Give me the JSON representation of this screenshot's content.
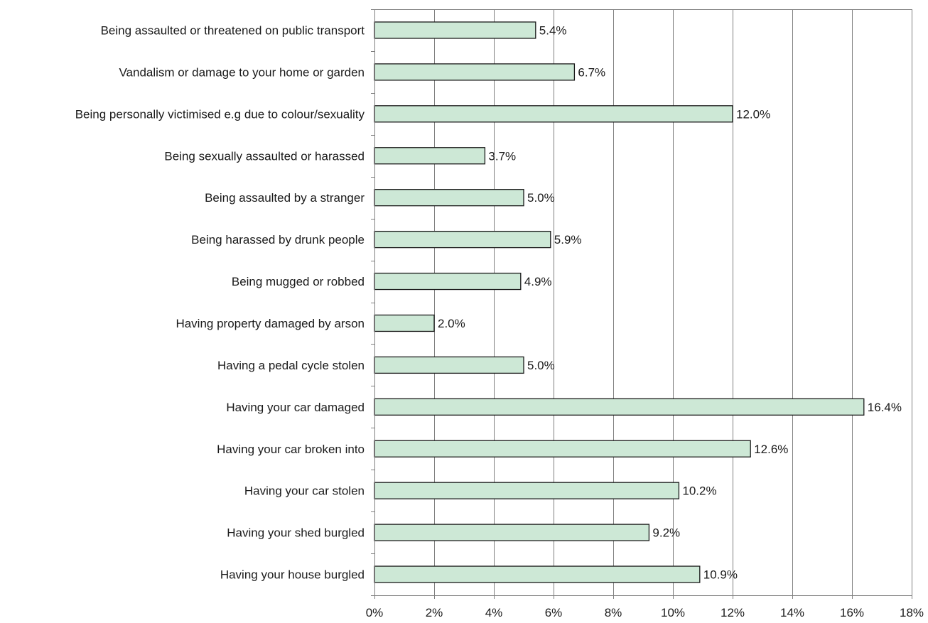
{
  "chart_data": {
    "type": "bar",
    "orientation": "horizontal",
    "title": "",
    "xlabel": "",
    "ylabel": "",
    "xlim": [
      0,
      18
    ],
    "x_ticks": [
      0,
      2,
      4,
      6,
      8,
      10,
      12,
      14,
      16,
      18
    ],
    "x_tick_labels": [
      "0%",
      "2%",
      "4%",
      "6%",
      "8%",
      "10%",
      "12%",
      "14%",
      "16%",
      "18%"
    ],
    "grid": true,
    "legend": "none",
    "colors": {
      "bar_fill": "#cde8d6",
      "bar_stroke": "#1a1a1a",
      "grid": "#7f7f7f"
    },
    "categories": [
      "Being assaulted or threatened on public transport",
      "Vandalism or damage to your home or garden",
      "Being personally victimised e.g due to colour/sexuality",
      "Being sexually assaulted or harassed",
      "Being assaulted by a stranger",
      "Being harassed by drunk people",
      "Being mugged or robbed",
      "Having property damaged by arson",
      "Having a pedal cycle stolen",
      "Having your car damaged",
      "Having your car broken into",
      "Having your car stolen",
      "Having your shed burgled",
      "Having your house burgled"
    ],
    "values": [
      5.4,
      6.7,
      12.0,
      3.7,
      5.0,
      5.9,
      4.9,
      2.0,
      5.0,
      16.4,
      12.6,
      10.2,
      9.2,
      10.9
    ],
    "value_labels": [
      "5.4%",
      "6.7%",
      "12.0%",
      "3.7%",
      "5.0%",
      "5.9%",
      "4.9%",
      "2.0%",
      "5.0%",
      "16.4%",
      "12.6%",
      "10.2%",
      "9.2%",
      "10.9%"
    ]
  }
}
